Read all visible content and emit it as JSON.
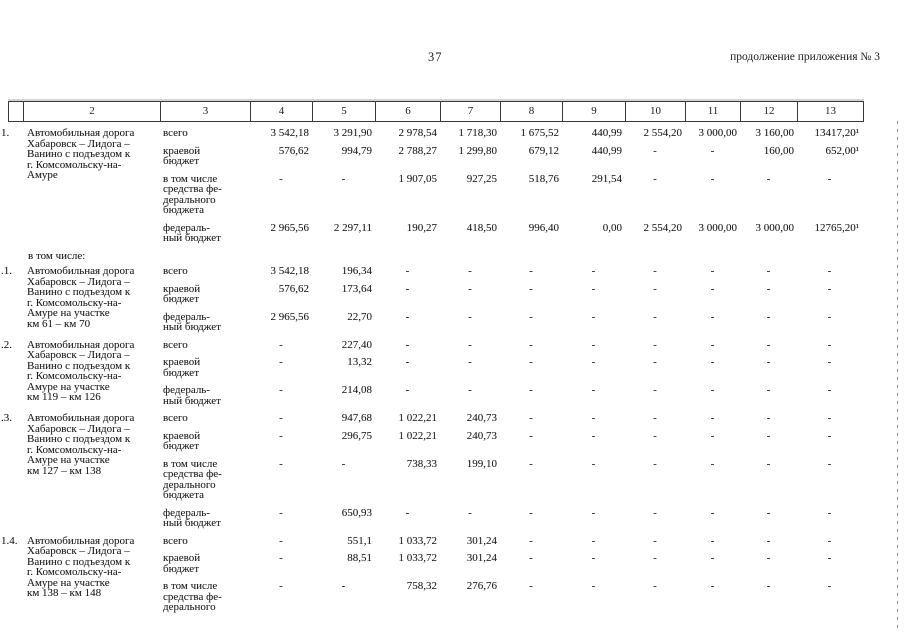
{
  "page": {
    "page_number": "37",
    "header_right": "продолжение приложения № 3"
  },
  "table": {
    "column_headers": [
      "",
      "2",
      "3",
      "4",
      "5",
      "6",
      "7",
      "8",
      "9",
      "10",
      "11",
      "12",
      "13"
    ],
    "rows": [
      {
        "num": "1.",
        "name": "Автомобильная дорога\nХабаровск – Лидога –\nВанино с подъездом к\nг. Комсомольску-на-\nАмуре",
        "subrows": [
          {
            "label": "всего",
            "values": [
              "3 542,18",
              "3 291,90",
              "2 978,54",
              "1 718,30",
              "1 675,52",
              "440,99",
              "2 554,20",
              "3 000,00",
              "3 160,00",
              "13417,20¹"
            ]
          },
          {
            "label": "краевой\nбюджет",
            "values": [
              "576,62",
              "994,79",
              "2 788,27",
              "1 299,80",
              "679,12",
              "440,99",
              "-",
              "-",
              "160,00",
              "652,00¹"
            ]
          },
          {
            "label": "в том числе\nсредства фе-\nдерального\nбюджета",
            "values": [
              "-",
              "-",
              "1 907,05",
              "927,25",
              "518,76",
              "291,54",
              "-",
              "-",
              "-",
              "-"
            ]
          },
          {
            "label": "федераль-\nный бюджет",
            "values": [
              "2 965,56",
              "2 297,11",
              "190,27",
              "418,50",
              "996,40",
              "0,00",
              "2 554,20",
              "3 000,00",
              "3 000,00",
              "12765,20¹"
            ]
          }
        ]
      },
      {
        "separator": "в том числе:"
      },
      {
        "num": ".1.",
        "name": "Автомобильная дорога\nХабаровск – Лидога –\nВанино с подъездом к\nг. Комсомольску-на-\nАмуре на участке\nкм 61 – км 70",
        "subrows": [
          {
            "label": "всего",
            "values": [
              "3 542,18",
              "196,34",
              "-",
              "-",
              "-",
              "-",
              "-",
              "-",
              "-",
              "-"
            ]
          },
          {
            "label": "краевой\nбюджет",
            "values": [
              "576,62",
              "173,64",
              "-",
              "-",
              "-",
              "-",
              "-",
              "-",
              "-",
              "-"
            ]
          },
          {
            "label": "федераль-\nный бюджет",
            "values": [
              "2 965,56",
              "22,70",
              "-",
              "-",
              "-",
              "-",
              "-",
              "-",
              "-",
              "-"
            ]
          }
        ]
      },
      {
        "num": ".2.",
        "name": "Автомобильная дорога\nХабаровск – Лидога –\nВанино с подъездом к\nг. Комсомольску-на-\nАмуре на участке\nкм 119 – км 126",
        "subrows": [
          {
            "label": "всего",
            "values": [
              "-",
              "227,40",
              "-",
              "-",
              "-",
              "-",
              "-",
              "-",
              "-",
              "-"
            ]
          },
          {
            "label": "краевой\nбюджет",
            "values": [
              "-",
              "13,32",
              "-",
              "-",
              "-",
              "-",
              "-",
              "-",
              "-",
              "-"
            ]
          },
          {
            "label": "федераль-\nный бюджет",
            "values": [
              "-",
              "214,08",
              "-",
              "-",
              "-",
              "-",
              "-",
              "-",
              "-",
              "-"
            ]
          }
        ]
      },
      {
        "num": ".3.",
        "name": "Автомобильная дорога\nХабаровск – Лидога –\nВанино с подъездом к\nг. Комсомольску-на-\nАмуре на участке\nкм 127 – км 138",
        "subrows": [
          {
            "label": "всего",
            "values": [
              "-",
              "947,68",
              "1 022,21",
              "240,73",
              "-",
              "-",
              "-",
              "-",
              "-",
              "-"
            ]
          },
          {
            "label": "краевой\nбюджет",
            "values": [
              "-",
              "296,75",
              "1 022,21",
              "240,73",
              "-",
              "-",
              "-",
              "-",
              "-",
              "-"
            ]
          },
          {
            "label": "в том числе\nсредства фе-\nдерального\nбюджета",
            "values": [
              "-",
              "-",
              "738,33",
              "199,10",
              "-",
              "-",
              "-",
              "-",
              "-",
              "-"
            ]
          },
          {
            "label": "федераль-\nный бюджет",
            "values": [
              "-",
              "650,93",
              "-",
              "-",
              "-",
              "-",
              "-",
              "-",
              "-",
              "-"
            ]
          }
        ]
      },
      {
        "num": "1.4.",
        "name": "Автомобильная дорога\nХабаровск – Лидога –\nВанино с подъездом к\nг. Комсомольску-на-\nАмуре на участке\nкм 138 – км 148",
        "subrows": [
          {
            "label": "всего",
            "values": [
              "-",
              "551,1",
              "1 033,72",
              "301,24",
              "-",
              "-",
              "-",
              "-",
              "-",
              "-"
            ]
          },
          {
            "label": "краевой\nбюджет",
            "values": [
              "-",
              "88,51",
              "1 033,72",
              "301,24",
              "-",
              "-",
              "-",
              "-",
              "-",
              "-"
            ]
          },
          {
            "label": "в том числе\nсредства фе-\nдерального",
            "values": [
              "-",
              "-",
              "758,32",
              "276,76",
              "-",
              "-",
              "-",
              "-",
              "-",
              "-"
            ]
          }
        ]
      }
    ]
  }
}
